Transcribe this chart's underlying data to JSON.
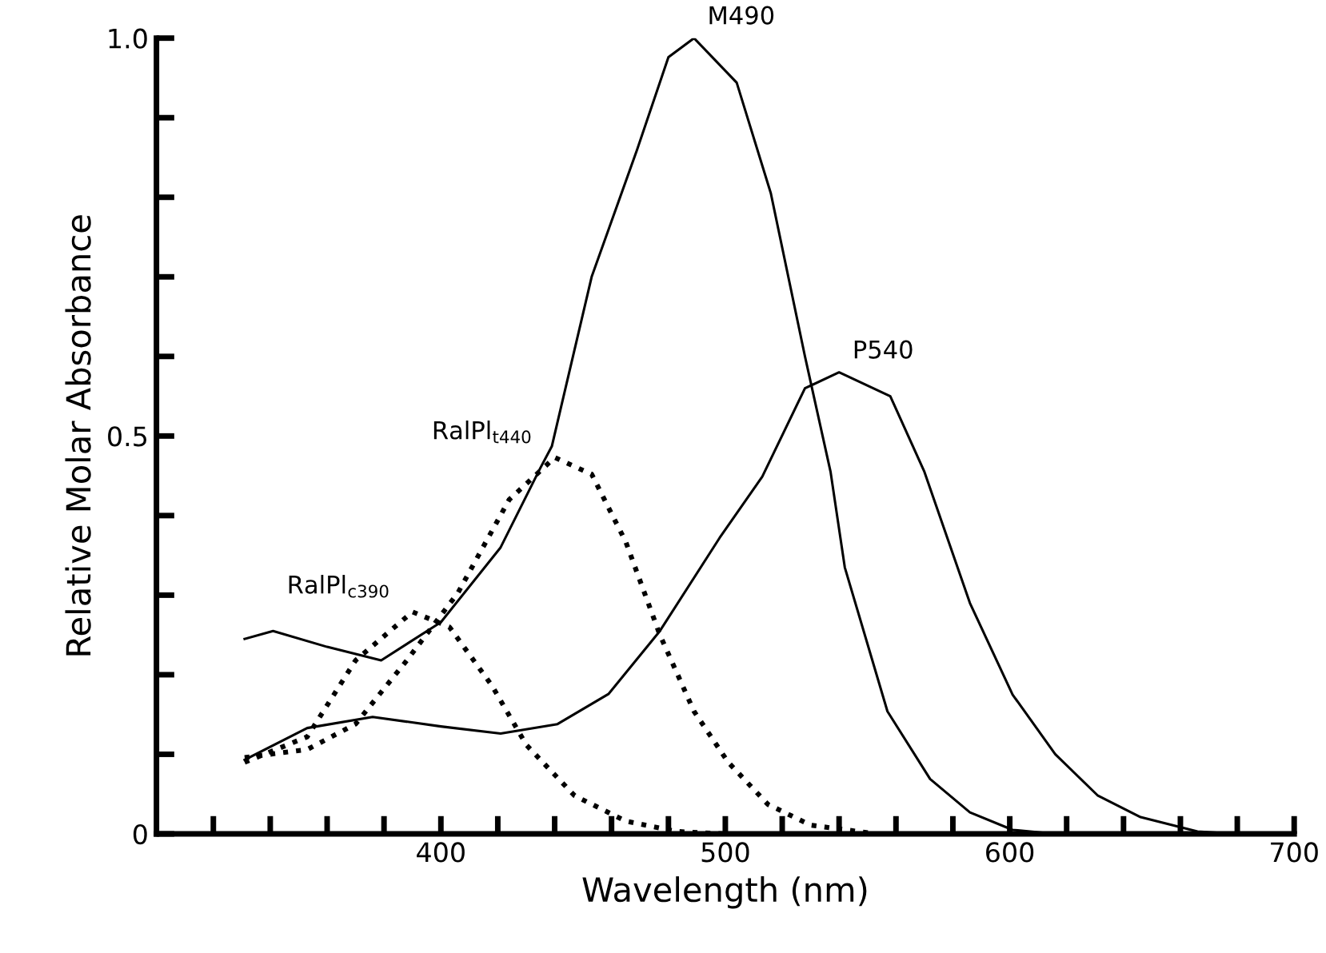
{
  "chart_data": {
    "type": "line",
    "xlabel": "Wavelength (nm)",
    "ylabel": "Relative Molar Absorbance",
    "xlim": [
      300,
      700
    ],
    "ylim": [
      0,
      1.0
    ],
    "xticks": [
      {
        "value": 320,
        "label": null
      },
      {
        "value": 340,
        "label": null
      },
      {
        "value": 360,
        "label": null
      },
      {
        "value": 380,
        "label": null
      },
      400,
      {
        "value": 420,
        "label": null
      },
      {
        "value": 440,
        "label": null
      },
      {
        "value": 460,
        "label": null
      },
      {
        "value": 480,
        "label": null
      },
      500,
      {
        "value": 520,
        "label": null
      },
      {
        "value": 540,
        "label": null
      },
      {
        "value": 560,
        "label": null
      },
      {
        "value": 580,
        "label": null
      },
      600,
      {
        "value": 620,
        "label": null
      },
      {
        "value": 640,
        "label": null
      },
      {
        "value": 660,
        "label": null
      },
      {
        "value": 680,
        "label": null
      },
      700
    ],
    "yticks": [
      0,
      {
        "value": 0.1,
        "label": null
      },
      {
        "value": 0.2,
        "label": null
      },
      {
        "value": 0.3,
        "label": null
      },
      {
        "value": 0.4,
        "label": null
      },
      0.5,
      {
        "value": 0.6,
        "label": null
      },
      {
        "value": 0.7,
        "label": null
      },
      {
        "value": 0.8,
        "label": null
      },
      {
        "value": 0.9,
        "label": null
      },
      {
        "value": 1.0,
        "label": "1.0"
      }
    ],
    "grid": false,
    "legend": false,
    "series": [
      {
        "name": "M490",
        "color": "#000000",
        "line_style": "solid",
        "x": [
          331,
          341,
          360,
          379,
          400,
          421,
          435,
          439,
          453,
          469,
          480,
          489,
          504,
          516,
          528,
          537,
          542,
          557,
          572,
          586,
          601,
          616,
          620
        ],
        "values": [
          0.245,
          0.255,
          0.235,
          0.218,
          0.266,
          0.36,
          0.46,
          0.487,
          0.7,
          0.86,
          0.976,
          1.0,
          0.944,
          0.805,
          0.6,
          0.455,
          0.335,
          0.154,
          0.069,
          0.027,
          0.005,
          0.0,
          0.0
        ]
      },
      {
        "name": "P540",
        "color": "#000000",
        "line_style": "solid",
        "x": [
          331,
          353,
          376,
          400,
          421,
          441,
          459,
          477,
          498,
          513,
          528,
          540,
          558,
          570,
          586,
          601,
          616,
          631,
          646,
          666,
          680
        ],
        "values": [
          0.093,
          0.133,
          0.147,
          0.135,
          0.126,
          0.138,
          0.176,
          0.255,
          0.372,
          0.449,
          0.56,
          0.58,
          0.55,
          0.455,
          0.29,
          0.175,
          0.1,
          0.048,
          0.021,
          0.003,
          0.0
        ]
      },
      {
        "name": "RalPl$_{c390}$",
        "color": "#000000",
        "line_style": "dotted",
        "x": [
          331,
          353,
          370,
          390,
          403,
          418,
          430,
          447,
          465,
          483,
          500
        ],
        "values": [
          0.09,
          0.122,
          0.218,
          0.279,
          0.26,
          0.186,
          0.112,
          0.048,
          0.016,
          0.003,
          0.0
        ]
      },
      {
        "name": "RalPl$_{t440}$",
        "color": "#000000",
        "line_style": "dotted",
        "x": [
          331,
          353,
          370,
          388,
          406,
          424,
          440,
          453,
          465,
          477,
          489,
          501,
          515,
          530,
          551
        ],
        "values": [
          0.096,
          0.106,
          0.138,
          0.218,
          0.303,
          0.42,
          0.473,
          0.452,
          0.367,
          0.25,
          0.154,
          0.09,
          0.037,
          0.011,
          0.001
        ]
      }
    ]
  }
}
